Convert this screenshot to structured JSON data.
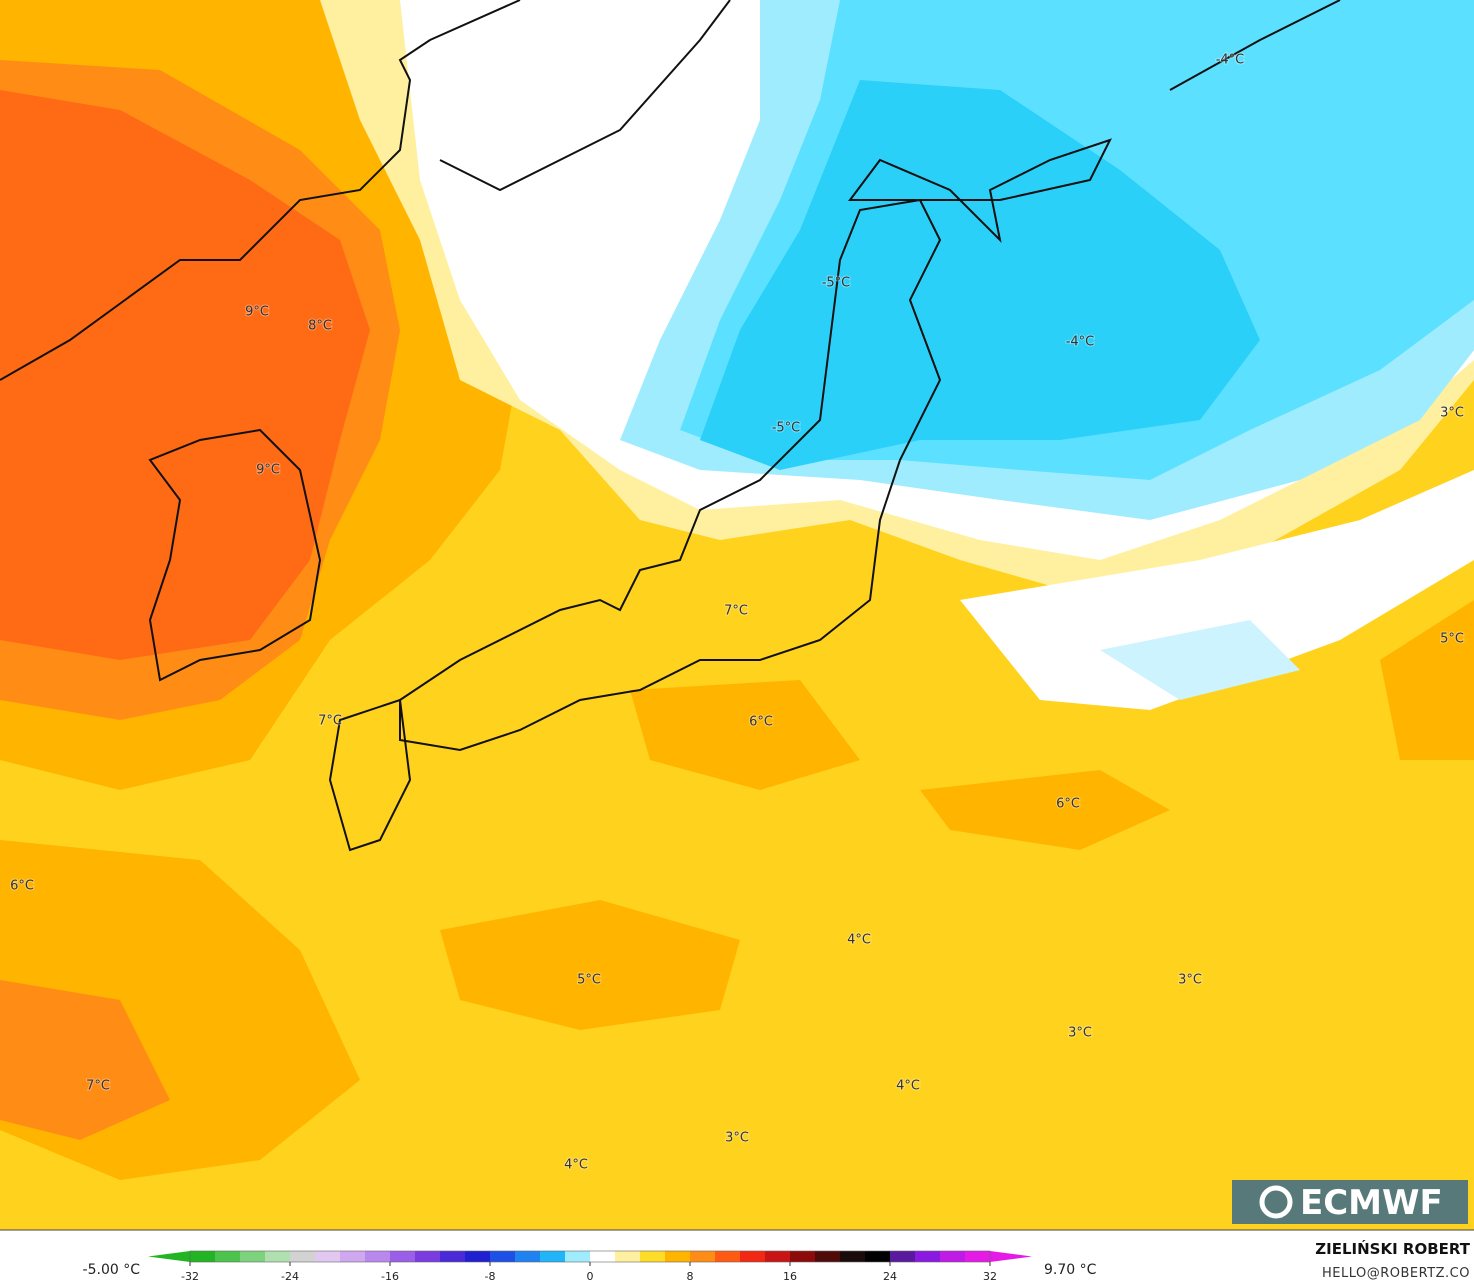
{
  "map": {
    "labels": [
      "-4°C",
      "-5°C",
      "-4°C",
      "9°C",
      "8°C",
      "3°C",
      "-5°C",
      "9°C",
      "7°C",
      "5°C",
      "7°C",
      "6°C",
      "6°C",
      "6°C",
      "4°C",
      "5°C",
      "3°C",
      "3°C",
      "7°C",
      "4°C",
      "3°C",
      "4°C"
    ]
  },
  "logo": "ECMWF",
  "credit": {
    "name": "ZIELIŃSKI ROBERT",
    "email": "HELLO@ROBERTZ.CO"
  },
  "colorbar": {
    "min_label": "-5.00 °C",
    "max_label": "9.70 °C",
    "lim": [
      -32,
      32
    ],
    "ticks": [
      -32,
      -24,
      -16,
      -8,
      0,
      8,
      16,
      24,
      32
    ],
    "colors": [
      "#22b422",
      "#4cc34c",
      "#7dd37d",
      "#b0dfb0",
      "#d2d2d2",
      "#e2c8f0",
      "#d0a8f0",
      "#b888ee",
      "#9a5ee8",
      "#7a3ce0",
      "#4a2ad8",
      "#2020d0",
      "#1e50e6",
      "#1e82f0",
      "#20b4f8",
      "#a0ecff",
      "#ffffff",
      "#fff0a0",
      "#ffdc28",
      "#ffb400",
      "#ff8c14",
      "#ff5a14",
      "#f02814",
      "#c81414",
      "#8c0a0a",
      "#500a0a",
      "#1a0a0a",
      "#000000",
      "#5a1aa0",
      "#8a1ae0",
      "#c01ae6",
      "#e61ae6"
    ]
  }
}
